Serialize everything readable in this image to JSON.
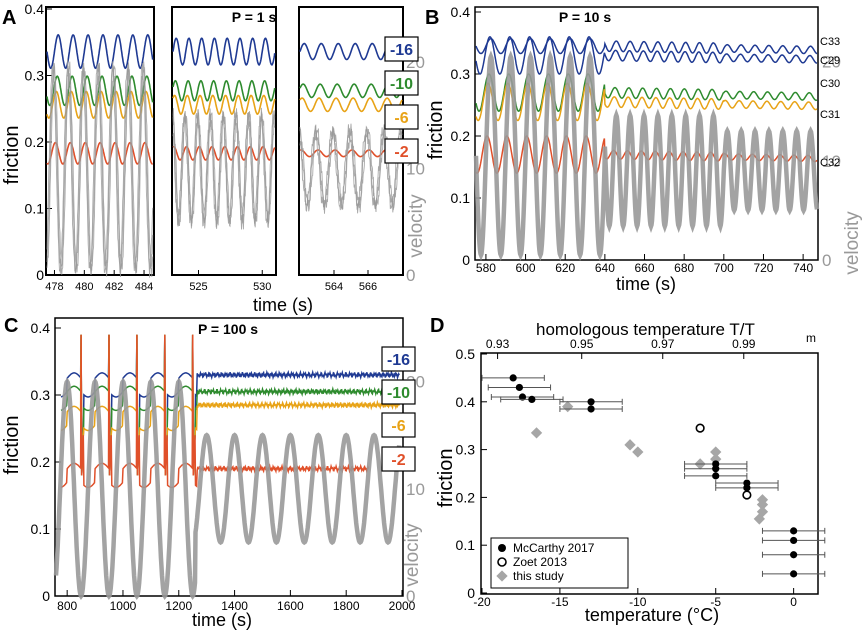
{
  "figure": {
    "panel_a": {
      "letter": "A",
      "title": "P = 1 s",
      "ylabel": "friction",
      "y2label": "velocity",
      "xlabel": "time (s)",
      "yticks": [
        "0",
        "0.1",
        "0.2",
        "0.3",
        "0.4"
      ],
      "y2ticks": [
        "0",
        "10",
        "20"
      ],
      "sub1_xticks": [
        "478",
        "480",
        "482",
        "484"
      ],
      "sub2_xticks": [
        "525",
        "530"
      ],
      "sub3_xticks": [
        "564",
        "566"
      ],
      "temp_labels": [
        {
          "text": "-16",
          "color": "#1f3a93"
        },
        {
          "text": "-10",
          "color": "#2e8b2e"
        },
        {
          "text": "-6",
          "color": "#e8a317"
        },
        {
          "text": "-2",
          "color": "#e0502a"
        }
      ]
    },
    "panel_b": {
      "letter": "B",
      "title": "P = 10 s",
      "ylabel": "friction",
      "y2label": "velocity",
      "xlabel": "time (s)",
      "yticks": [
        "0",
        "0.1",
        "0.2",
        "0.3",
        "0.4"
      ],
      "y2ticks": [
        "0",
        "10",
        "20"
      ],
      "xticks": [
        "580",
        "600",
        "620",
        "640",
        "660",
        "680",
        "700",
        "720",
        "740"
      ],
      "curve_labels": [
        "C33",
        "C29",
        "C30",
        "C31",
        "C32"
      ]
    },
    "panel_c": {
      "letter": "C",
      "title": "P = 100 s",
      "ylabel": "friction",
      "y2label": "velocity",
      "xlabel": "time (s)",
      "yticks": [
        "0",
        "0.1",
        "0.2",
        "0.3",
        "0.4"
      ],
      "y2ticks": [
        "0",
        "10",
        "20"
      ],
      "xticks": [
        "800",
        "1000",
        "1200",
        "1400",
        "1600",
        "1800",
        "2000"
      ],
      "temp_labels": [
        {
          "text": "-16",
          "color": "#1f3a93"
        },
        {
          "text": "-10",
          "color": "#2e8b2e"
        },
        {
          "text": "-6",
          "color": "#e8a317"
        },
        {
          "text": "-2",
          "color": "#e0502a"
        }
      ]
    },
    "panel_d": {
      "letter": "D",
      "ylabel": "friction",
      "xlabel": "temperature (°C)",
      "top_label": "homologous temperature T/T",
      "top_label_sub": "m",
      "top_ticks": [
        "0.93",
        "0.95",
        "0.97",
        "0.99"
      ],
      "legend": [
        "McCarthy 2017",
        "Zoet 2013",
        "this study"
      ]
    }
  },
  "chart_data": [
    {
      "type": "line",
      "panel": "A",
      "title": "P = 1 s",
      "xlabel": "time (s)",
      "ylabel": "friction",
      "y2label": "velocity",
      "ylim": [
        0,
        0.4
      ],
      "y2lim": [
        0,
        25
      ],
      "subpanels": [
        {
          "xlim": [
            477.5,
            484.6
          ],
          "period": 1
        },
        {
          "xlim": [
            523,
            531
          ],
          "period": 1
        },
        {
          "xlim": [
            562,
            568
          ],
          "period": 1
        }
      ],
      "series": [
        {
          "name": "-16",
          "color": "#1f3a93",
          "mean": 0.336,
          "amp": [
            0.025,
            0.02,
            0.012
          ]
        },
        {
          "name": "-10",
          "color": "#2e8b2e",
          "mean": 0.277,
          "amp": [
            0.022,
            0.015,
            0.01
          ]
        },
        {
          "name": "-6",
          "color": "#e8a317",
          "mean": 0.256,
          "amp": [
            0.02,
            0.014,
            0.01
          ]
        },
        {
          "name": "-2",
          "color": "#e0502a",
          "mean": 0.183,
          "amp": [
            0.016,
            0.01,
            0.005
          ]
        },
        {
          "name": "velocity",
          "axis": "y2",
          "color": "#999999",
          "mean": 10,
          "amp": [
            9.5,
            5,
            3.5
          ]
        }
      ]
    },
    {
      "type": "line",
      "panel": "B",
      "title": "P = 10 s",
      "xlabel": "time (s)",
      "ylabel": "friction",
      "y2label": "velocity",
      "xlim": [
        575,
        747
      ],
      "ylim": [
        0,
        0.4
      ],
      "y2lim": [
        0,
        25
      ],
      "period": 10,
      "series": [
        {
          "name": "C33",
          "color": "#1f3a93",
          "values_mean": 0.345,
          "amp_early": 0.012,
          "amp_late": 0.006
        },
        {
          "name": "C29",
          "color": "#1f3a93",
          "values_mean": 0.33,
          "amp_early": 0.03,
          "amp_late": 0.006
        },
        {
          "name": "C30",
          "color": "#2e8b2e",
          "values_mean": 0.27,
          "amp_early": 0.03,
          "amp_late": 0.006
        },
        {
          "name": "C31",
          "color": "#e8a317",
          "values_mean": 0.255,
          "amp_early": 0.03,
          "amp_late": 0.006
        },
        {
          "name": "C32",
          "color": "#e0502a",
          "values_mean": 0.17,
          "amp_early": 0.03,
          "amp_late": 0.005
        },
        {
          "name": "velocity",
          "axis": "y2",
          "color": "#999999",
          "values_mean": 10,
          "amp_early": 10,
          "amp_late": 4
        }
      ],
      "transitions": [
        640,
        700
      ]
    },
    {
      "type": "line",
      "panel": "C",
      "title": "P = 100 s",
      "xlabel": "time (s)",
      "ylabel": "friction",
      "y2label": "velocity",
      "xlim": [
        760,
        2000
      ],
      "ylim": [
        0,
        0.4
      ],
      "y2lim": [
        0,
        25
      ],
      "period": 100,
      "spike_times": [
        850,
        950,
        1050,
        1150,
        1250
      ],
      "series": [
        {
          "name": "-16",
          "color": "#1f3a93",
          "base": 0.325,
          "late_base": 0.33,
          "end": 1990
        },
        {
          "name": "-10",
          "color": "#2e8b2e",
          "base": 0.305,
          "late_base": 0.305,
          "end": 1990
        },
        {
          "name": "-6",
          "color": "#e8a317",
          "base": 0.275,
          "late_base": 0.285,
          "end": 1990
        },
        {
          "name": "-2",
          "color": "#e0502a",
          "base": 0.19,
          "late_base": 0.19,
          "end": 1880
        },
        {
          "name": "velocity",
          "axis": "y2",
          "color": "#999999",
          "mean": 10,
          "amp_early": 10,
          "amp_late": 5
        }
      ]
    },
    {
      "type": "scatter",
      "panel": "D",
      "xlabel": "temperature (°C)",
      "ylabel": "friction",
      "x2label": "homologous temperature T/Tm",
      "xlim": [
        -20,
        1.5
      ],
      "ylim": [
        0,
        0.5
      ],
      "xticks": [
        -20,
        -15,
        -10,
        -5,
        0
      ],
      "yticks": [
        0,
        0.1,
        0.2,
        0.3,
        0.4,
        0.5
      ],
      "x2ticks": [
        0.93,
        0.95,
        0.97,
        0.99
      ],
      "series": [
        {
          "name": "McCarthy 2017",
          "marker": "filled-circle",
          "error_x": 2,
          "points": [
            [
              -18,
              0.45
            ],
            [
              -17.6,
              0.43
            ],
            [
              -17.4,
              0.41
            ],
            [
              -16.8,
              0.405
            ],
            [
              -13,
              0.4
            ],
            [
              -13,
              0.385
            ],
            [
              -5,
              0.27
            ],
            [
              -5,
              0.26
            ],
            [
              -5,
              0.245
            ],
            [
              -3,
              0.23
            ],
            [
              -3,
              0.22
            ],
            [
              0,
              0.13
            ],
            [
              0,
              0.11
            ],
            [
              0,
              0.08
            ],
            [
              0,
              0.04
            ]
          ]
        },
        {
          "name": "Zoet 2013",
          "marker": "open-circle",
          "points": [
            [
              -6,
              0.345
            ],
            [
              -3,
              0.205
            ]
          ]
        },
        {
          "name": "this study",
          "marker": "grey-diamond",
          "points": [
            [
              -16.5,
              0.335
            ],
            [
              -14.5,
              0.39
            ],
            [
              -10.5,
              0.31
            ],
            [
              -10,
              0.295
            ],
            [
              -6,
              0.27
            ],
            [
              -5,
              0.295
            ],
            [
              -5,
              0.28
            ],
            [
              -2,
              0.195
            ],
            [
              -2,
              0.185
            ],
            [
              -2,
              0.17
            ],
            [
              -2.2,
              0.155
            ]
          ]
        }
      ]
    }
  ]
}
